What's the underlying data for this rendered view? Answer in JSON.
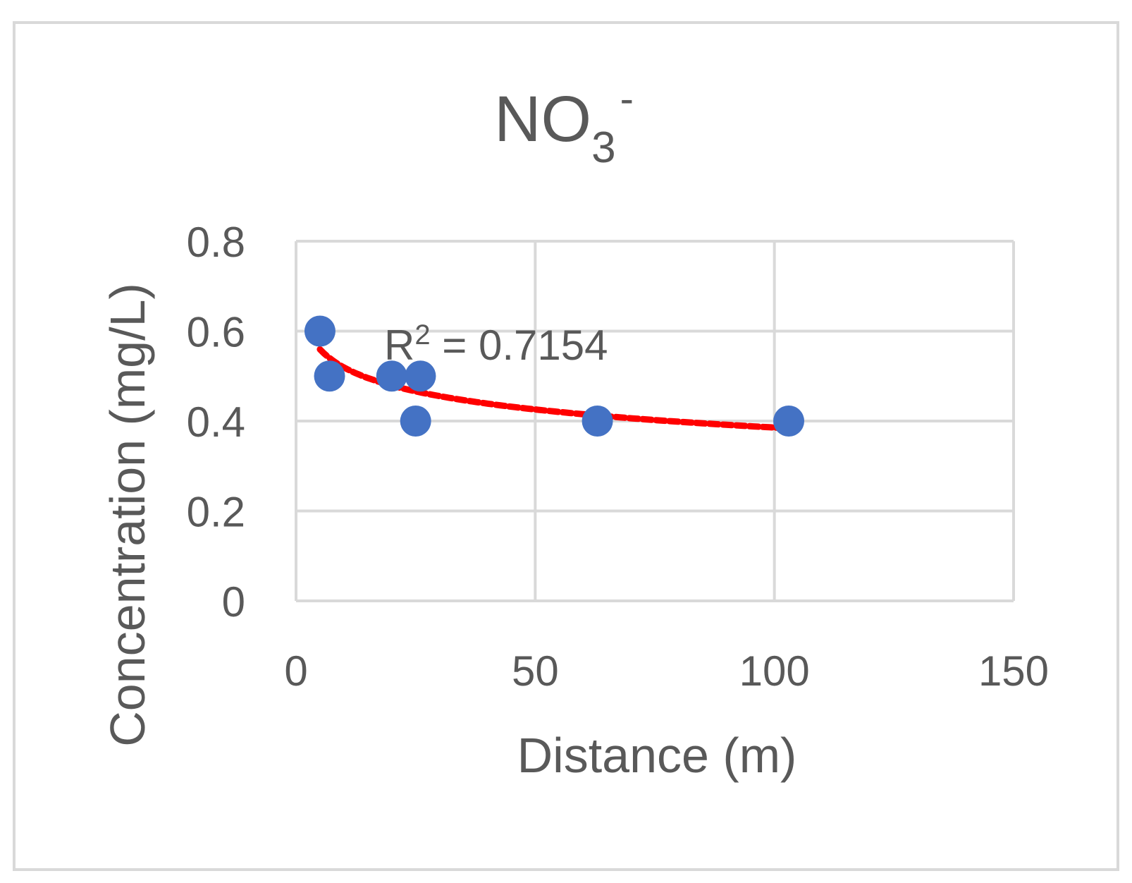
{
  "chart_data": {
    "type": "scatter",
    "title": {
      "main": "NO",
      "subscript": "3",
      "superscript": "-"
    },
    "xlabel": "Distance (m)",
    "ylabel": "Concentration (mg/L)",
    "xlim": [
      0,
      150
    ],
    "ylim": [
      0,
      0.8
    ],
    "xticks": [
      0,
      50,
      100,
      150
    ],
    "xtick_labels": [
      "0",
      "50",
      "100",
      "150"
    ],
    "yticks": [
      0,
      0.2,
      0.4,
      0.6,
      0.8
    ],
    "ytick_labels": [
      "0",
      "0.2",
      "0.4",
      "0.6",
      "0.8"
    ],
    "grid": true,
    "series": [
      {
        "points": [
          {
            "x": 5,
            "y": 0.6
          },
          {
            "x": 7,
            "y": 0.5
          },
          {
            "x": 20,
            "y": 0.5
          },
          {
            "x": 26,
            "y": 0.5
          },
          {
            "x": 25,
            "y": 0.4
          },
          {
            "x": 63,
            "y": 0.4
          },
          {
            "x": 103,
            "y": 0.4
          }
        ],
        "color": "#4472C4"
      }
    ],
    "trendline": {
      "type": "logarithmic",
      "color": "#FF0000",
      "style": "dotted",
      "x_range": [
        5,
        103
      ],
      "a": 0.6531,
      "b": -0.0581
    },
    "annotation": {
      "label": "R",
      "superscript": "2",
      "value_text": " = 0.7154"
    }
  }
}
